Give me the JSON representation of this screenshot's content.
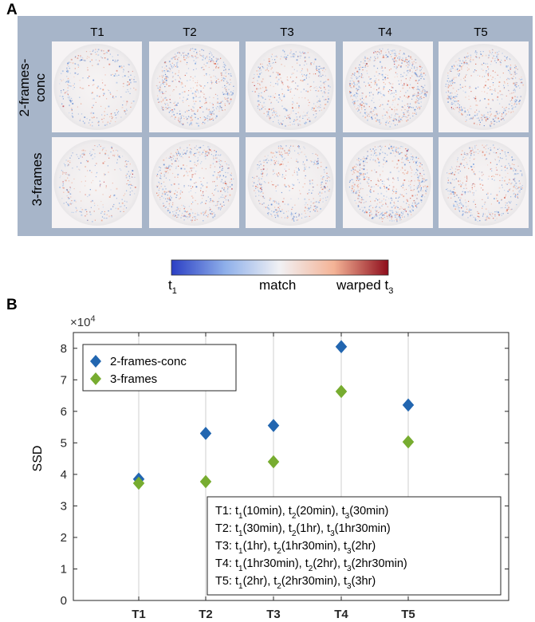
{
  "panel_a": {
    "label": "A",
    "columns": [
      "T1",
      "T2",
      "T3",
      "T4",
      "T5"
    ],
    "rows": [
      "2-frames-conc",
      "3-frames"
    ],
    "row_label_lines": [
      [
        "2-frames-",
        "conc"
      ],
      [
        "3-frames"
      ]
    ],
    "colorbar": {
      "left_label": "t",
      "left_sub": "1",
      "mid_label": "match",
      "right_label": "warped t",
      "right_sub": "3",
      "colors": [
        "#2b3fc4",
        "#8fb0ea",
        "#f1f1f4",
        "#f4b396",
        "#8e0d1b"
      ]
    },
    "colors": {
      "background": "#a7b5c9"
    }
  },
  "panel_b": {
    "label": "B",
    "multiplier_base": "×10",
    "multiplier_exp": "4",
    "legend": [
      "2-frames-conc",
      "3-frames"
    ],
    "info_lines": [
      [
        [
          "T1: t",
          ""
        ],
        [
          "1",
          "sub"
        ],
        [
          "(10min), t",
          ""
        ],
        [
          "2",
          "sub"
        ],
        [
          "(20min), t",
          ""
        ],
        [
          "3",
          "sub"
        ],
        [
          "(30min)",
          ""
        ]
      ],
      [
        [
          "T2: t",
          ""
        ],
        [
          "1",
          "sub"
        ],
        [
          "(30min), t",
          ""
        ],
        [
          "2",
          "sub"
        ],
        [
          "(1hr), t",
          ""
        ],
        [
          "3",
          "sub"
        ],
        [
          "(1hr30min)",
          ""
        ]
      ],
      [
        [
          "T3: t",
          ""
        ],
        [
          "1",
          "sub"
        ],
        [
          "(1hr), t",
          ""
        ],
        [
          "2",
          "sub"
        ],
        [
          "(1hr30min), t",
          ""
        ],
        [
          "3",
          "sub"
        ],
        [
          "(2hr)",
          ""
        ]
      ],
      [
        [
          "T4: t",
          ""
        ],
        [
          "1",
          "sub"
        ],
        [
          "(1hr30min), t",
          ""
        ],
        [
          "2",
          "sub"
        ],
        [
          "(2hr), t",
          ""
        ],
        [
          "3",
          "sub"
        ],
        [
          "(2hr30min)",
          ""
        ]
      ],
      [
        [
          "T5: t",
          ""
        ],
        [
          "1",
          "sub"
        ],
        [
          "(2hr), t",
          ""
        ],
        [
          "2",
          "sub"
        ],
        [
          "(2hr30min), t",
          ""
        ],
        [
          "3",
          "sub"
        ],
        [
          "(3hr)",
          ""
        ]
      ]
    ],
    "colors": {
      "series1": "#2266b0",
      "series2": "#77ac30",
      "grid": "#cfcfcf"
    }
  },
  "chart_data": {
    "type": "scatter",
    "title": "",
    "xlabel": "",
    "ylabel": "SSD",
    "categories": [
      "T1",
      "T2",
      "T3",
      "T4",
      "T5"
    ],
    "y_scale": "×10^4",
    "ylim": [
      0,
      8.5
    ],
    "yticks": [
      0,
      1,
      2,
      3,
      4,
      5,
      6,
      7,
      8
    ],
    "series": [
      {
        "name": "2-frames-conc",
        "values": [
          3.85,
          5.3,
          5.55,
          8.05,
          6.2
        ]
      },
      {
        "name": "3-frames",
        "values": [
          3.72,
          3.77,
          4.4,
          6.63,
          5.03
        ]
      }
    ]
  }
}
